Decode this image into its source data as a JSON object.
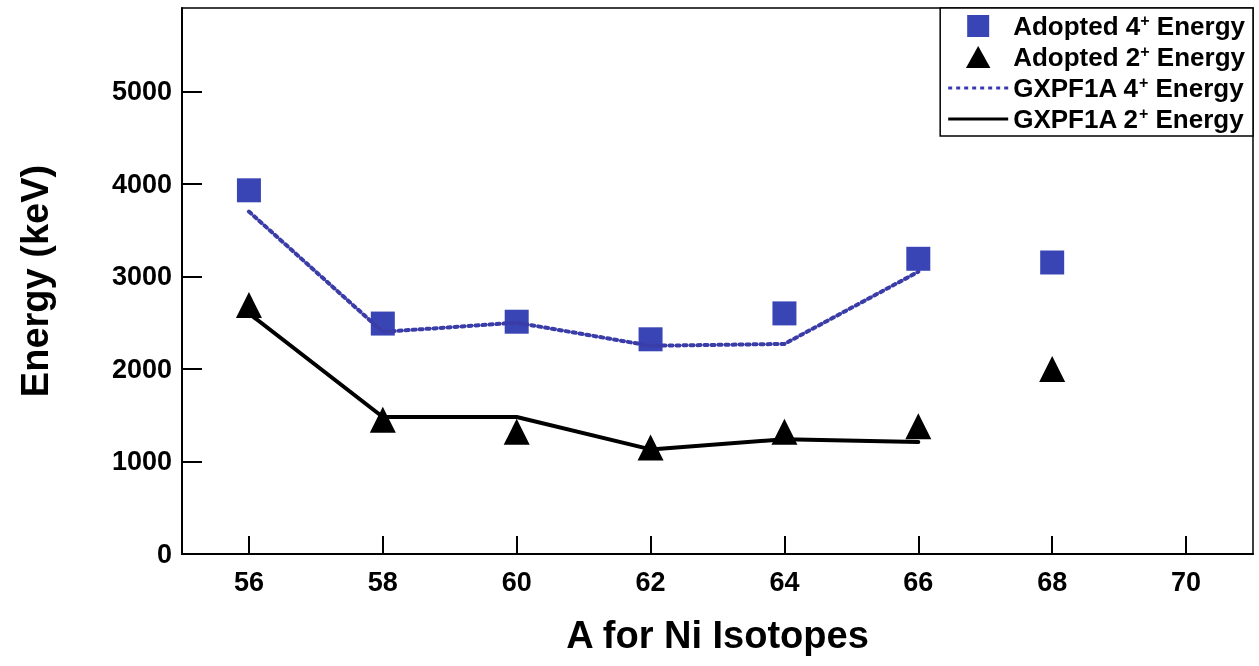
{
  "chart_data": {
    "type": "line",
    "xlabel": "A for Ni Isotopes",
    "ylabel": "Energy (keV)",
    "xlim": [
      55,
      71
    ],
    "xticks": [
      56,
      58,
      60,
      62,
      64,
      66,
      68,
      70
    ],
    "ylim": [
      0,
      5900
    ],
    "yticks": [
      0,
      1000,
      2000,
      3000,
      4000,
      5000
    ],
    "grid": false,
    "legend": "top right",
    "series": [
      {
        "name": "Adopted 4$^{+}$ Energy",
        "type": "scatter",
        "marker": "square",
        "color": "#3a45b5",
        "x": [
          56,
          58,
          60,
          62,
          64,
          66,
          68
        ],
        "values": [
          3930,
          2490,
          2510,
          2320,
          2600,
          3190,
          3150
        ]
      },
      {
        "name": "Adopted 2$^{+}$ Energy",
        "type": "scatter",
        "marker": "triangle",
        "color": "#000000",
        "x": [
          56,
          58,
          60,
          62,
          64,
          66,
          68
        ],
        "values": [
          2690,
          1450,
          1320,
          1150,
          1320,
          1380,
          2000
        ]
      },
      {
        "name": "GXPF1A 4$^{+}$ Energy",
        "marker": "none",
        "line_style": "dotted",
        "color": "#3a3ca8",
        "x": [
          56,
          58,
          60,
          62,
          64,
          66
        ],
        "values": [
          3700,
          2400,
          2500,
          2250,
          2270,
          3050
        ]
      },
      {
        "name": "GXPF1A 2$^{+}$ Energy",
        "marker": "none",
        "line_style": "solid",
        "color": "#000000",
        "x": [
          56,
          58,
          60,
          62,
          64,
          66
        ],
        "values": [
          2600,
          1480,
          1480,
          1130,
          1240,
          1210
        ]
      }
    ]
  }
}
